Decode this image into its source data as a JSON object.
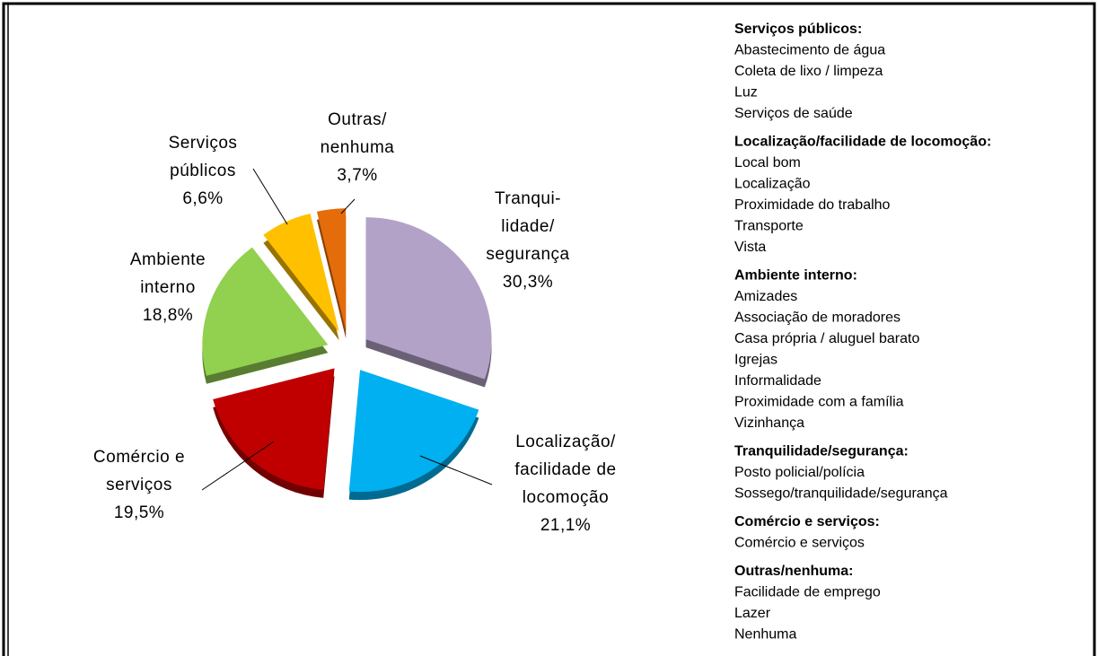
{
  "chart_data": {
    "type": "pie",
    "categories": [
      [
        "Tranqui-",
        "lidade/",
        "segurança"
      ],
      [
        "Localização/",
        "facilidade de",
        "locomoção"
      ],
      [
        "Comércio e",
        "serviços"
      ],
      [
        "Ambiente",
        "interno"
      ],
      [
        "Serviços",
        "públicos"
      ],
      [
        "Outras/",
        "nenhuma"
      ]
    ],
    "values": [
      30.3,
      21.1,
      19.5,
      18.8,
      6.6,
      3.7
    ],
    "value_labels": [
      "30,3%",
      "21,1%",
      "19,5%",
      "18,8%",
      "6,6%",
      "3,7%"
    ],
    "colors": [
      "#b3a2c7",
      "#00b0f0",
      "#c00000",
      "#92d050",
      "#ffc000",
      "#e46c0a"
    ]
  },
  "legend_groups": [
    {
      "title": "Serviços públicos:",
      "items": [
        "Abastecimento de água",
        "Coleta de lixo / limpeza",
        "Luz",
        "Serviços de saúde"
      ]
    },
    {
      "title": "Localização/facilidade de locomoção:",
      "items": [
        "Local bom",
        "Localização",
        "Proximidade do trabalho",
        "Transporte",
        "Vista"
      ]
    },
    {
      "title": "Ambiente interno:",
      "items": [
        "Amizades",
        "Associação de moradores",
        "Casa própria / aluguel  barato",
        "Igrejas",
        "Informalidade",
        "Proximidade com a família",
        "Vizinhança"
      ]
    },
    {
      "title": "Tranquilidade/segurança:",
      "items": [
        "Posto policial/polícia",
        "Sossego/tranquilidade/segurança"
      ]
    },
    {
      "title": "Comércio e serviços:",
      "items": [
        "Comércio e serviços"
      ]
    },
    {
      "title": "Outras/nenhuma:",
      "items": [
        "Facilidade de emprego",
        "Lazer",
        "Nenhuma"
      ]
    }
  ]
}
